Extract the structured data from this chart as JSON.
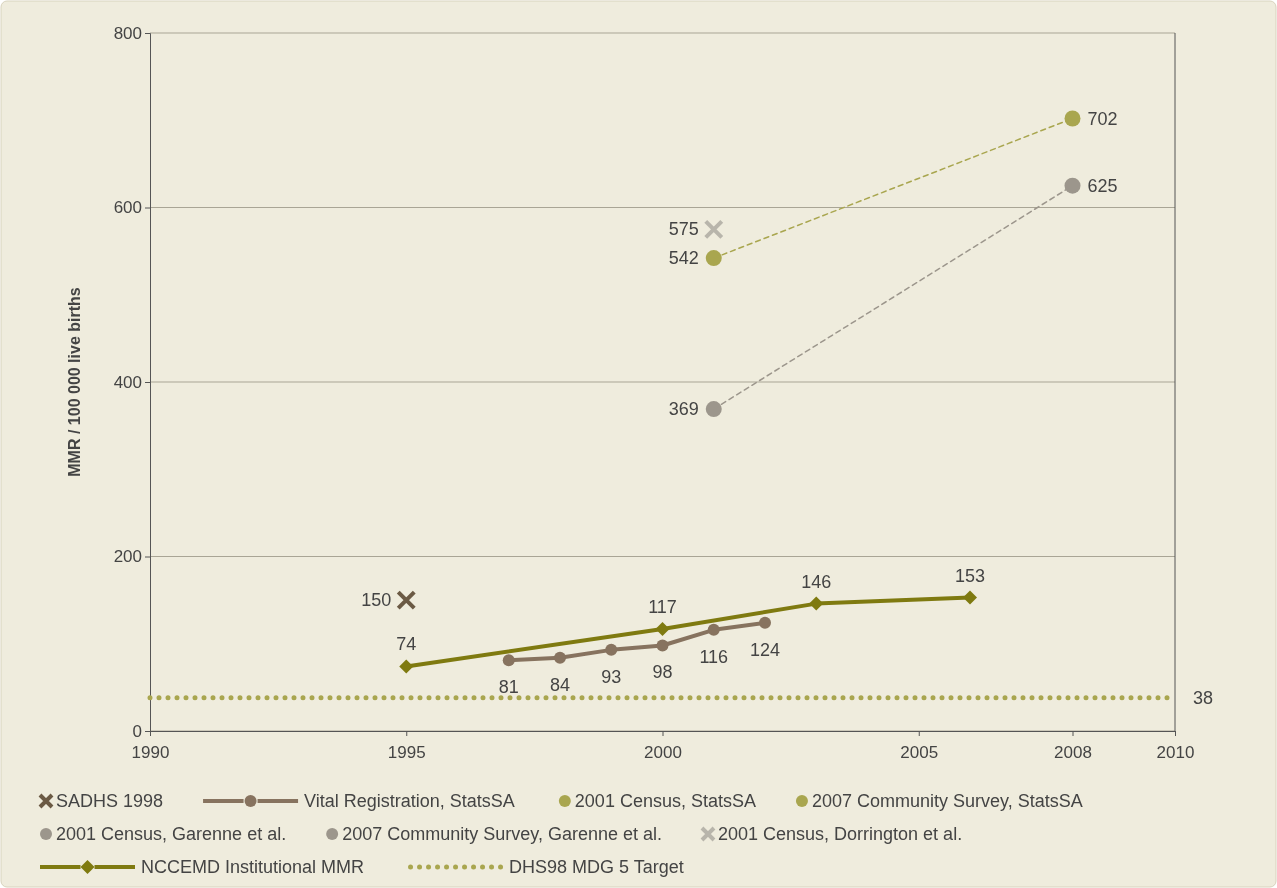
{
  "chart_data": {
    "type": "line",
    "ylabel": "MMR / 100 000 live births",
    "xlim": [
      1990,
      2010
    ],
    "xticks": [
      1990,
      1995,
      2000,
      2005,
      2008,
      2010
    ],
    "ylim": [
      0,
      800
    ],
    "yticks": [
      0,
      200,
      400,
      600,
      800
    ],
    "grid": "y",
    "legend": "bottom",
    "series": [
      {
        "name": "SADHS 1998",
        "type": "scatter",
        "marker": "cross",
        "color": "#6b5a44",
        "x": [
          1995
        ],
        "values": [
          150
        ],
        "value_labels": [
          "150"
        ]
      },
      {
        "name": "Vital Registration, StatsSA",
        "marker": "circle",
        "line_style": "solid",
        "color": "#87735f",
        "x": [
          1997,
          1998,
          1999,
          2000,
          2001,
          2002
        ],
        "values": [
          81,
          84,
          93,
          98,
          116,
          124
        ],
        "value_labels": [
          "81",
          "84",
          "93",
          "98",
          "116",
          "124"
        ]
      },
      {
        "name": "2001 Census, StatsSA",
        "type": "scatter",
        "marker": "circle",
        "color": "#a9a64f",
        "x": [
          2001
        ],
        "values": [
          542
        ],
        "value_labels": [
          "542"
        ]
      },
      {
        "name": "2007 Community Survey, StatsSA",
        "type": "scatter",
        "marker": "circle",
        "color": "#a9a64f",
        "x": [
          2008
        ],
        "values": [
          702
        ],
        "value_labels": [
          "702"
        ]
      },
      {
        "name": "2001 Census, Garenne et al.",
        "type": "scatter",
        "marker": "circle",
        "color": "#9c968c",
        "x": [
          2001
        ],
        "values": [
          369
        ],
        "value_labels": [
          "369"
        ]
      },
      {
        "name": "2007 Community Survey, Garenne et al.",
        "type": "scatter",
        "marker": "circle",
        "color": "#9c968c",
        "x": [
          2008
        ],
        "values": [
          625
        ],
        "value_labels": [
          "625"
        ]
      },
      {
        "name": "2001 Census, Dorrington et al.",
        "type": "scatter",
        "marker": "cross",
        "color": "#b8b5ab",
        "x": [
          2001
        ],
        "values": [
          575
        ],
        "value_labels": [
          "575"
        ]
      },
      {
        "name": "NCCEMD Institutional MMR",
        "marker": "diamond",
        "line_style": "solid",
        "color": "#7f7a10",
        "x": [
          1995,
          2000,
          2003,
          2006
        ],
        "values": [
          74,
          117,
          146,
          153
        ],
        "value_labels": [
          "74",
          "117",
          "146",
          "153"
        ]
      },
      {
        "name": "DHS98 MDG  5 Target",
        "marker": "none",
        "line_style": "dotted",
        "color": "#a9a64f",
        "x": [
          1990,
          2010
        ],
        "values": [
          38,
          38
        ],
        "value_labels": [
          null,
          "38"
        ]
      },
      {
        "marker": "none",
        "line_style": "dashed",
        "color": "#a9a64f",
        "x": [
          2001,
          2008
        ],
        "values": [
          542,
          702
        ]
      },
      {
        "marker": "none",
        "line_style": "dashed",
        "color": "#9c968c",
        "x": [
          2001,
          2008
        ],
        "values": [
          369,
          625
        ]
      }
    ]
  }
}
